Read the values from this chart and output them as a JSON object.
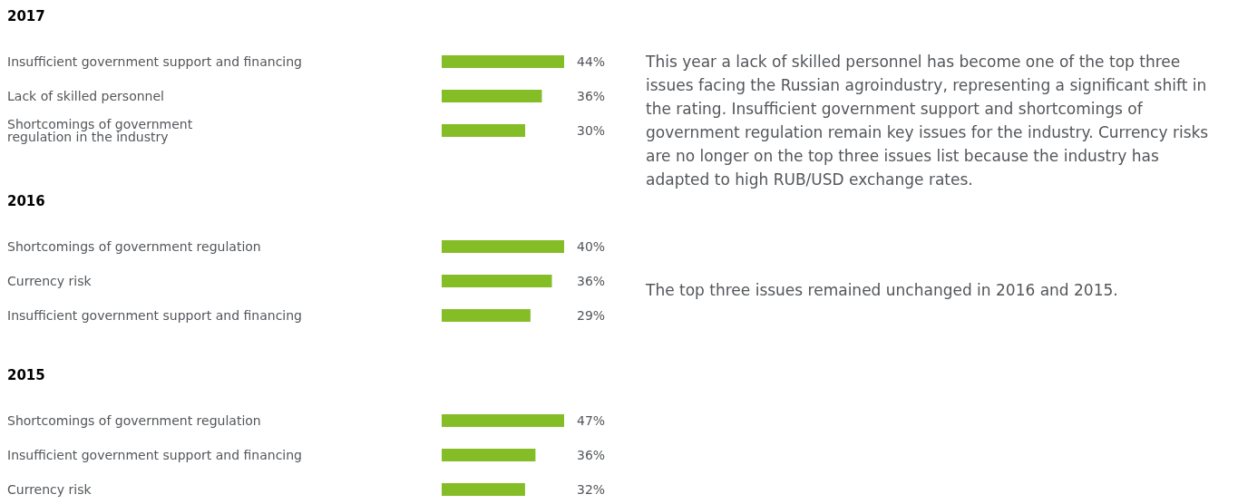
{
  "chart_data": [
    {
      "type": "bar",
      "orientation": "horizontal",
      "title": "2017",
      "categories": [
        "Insufficient government support and financing",
        "Lack of skilled personnel",
        "Shortcomings of government\nregulation in the industry"
      ],
      "values": [
        44,
        36,
        30
      ],
      "value_labels": [
        "44%",
        "36%",
        "30%"
      ],
      "color": "#84bd26"
    },
    {
      "type": "bar",
      "orientation": "horizontal",
      "title": "2016",
      "categories": [
        "Shortcomings of government regulation",
        "Currency risk",
        "Insufficient government support and financing"
      ],
      "values": [
        40,
        36,
        29
      ],
      "value_labels": [
        "40%",
        "36%",
        "29%"
      ],
      "color": "#84bd26"
    },
    {
      "type": "bar",
      "orientation": "horizontal",
      "title": "2015",
      "categories": [
        "Shortcomings of government regulation",
        "Insufficient government support and financing",
        "Currency risk"
      ],
      "values": [
        47,
        36,
        32
      ],
      "value_labels": [
        "47%",
        "36%",
        "32%"
      ],
      "color": "#84bd26"
    },
    {
      "type": "other",
      "annotations": [
        "This year a lack of skilled personnel has become one of the top three issues facing the Russian agroindustry, representing a significant shift in the rating. Insufficient government support and shortcomings of government regulation remain key issues for the industry. Currency risks are no longer on the top three issues list because the industry has adapted to high RUB/USD exchange rates.",
        "The top three issues remained unchanged in 2016 and 2015."
      ]
    }
  ]
}
